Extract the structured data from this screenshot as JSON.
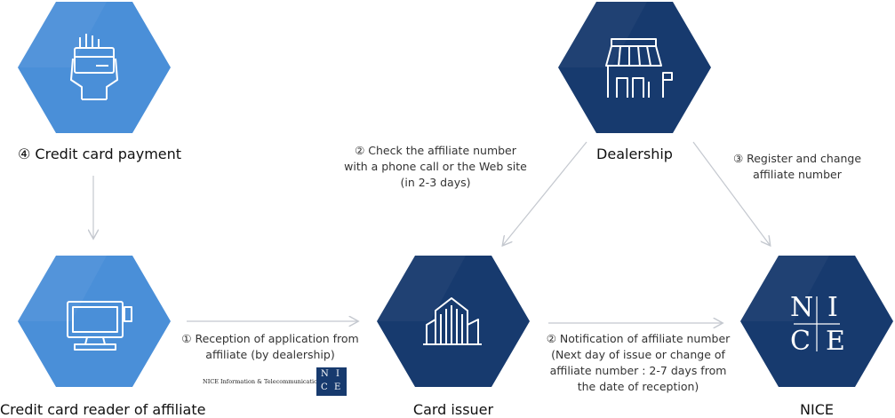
{
  "nodes": {
    "credit_card_payment": "④ Credit card payment",
    "dealership": "Dealership",
    "card_reader": "Credit card reader of affiliate",
    "card_issuer": "Card issuer",
    "nice": "NICE"
  },
  "notes": {
    "check_line1": "② Check the affiliate number",
    "check_line2": "with a phone call or the Web site",
    "check_line3": "(in 2-3 days)",
    "register_line1": "③ Register and change",
    "register_line2": "affiliate number",
    "reception_line1": "① Reception of application from",
    "reception_line2": "affiliate (by dealership)",
    "notification_line1": "② Notification of affiliate number",
    "notification_line2": "(Next day of issue or change of",
    "notification_line3": "affiliate number : 2-7 days from",
    "notification_line4": "the date of reception)"
  },
  "brand": {
    "text": "NICE Information & Telecommunication",
    "logo_letters": [
      "N",
      "I",
      "C",
      "E"
    ]
  },
  "nice_logo_letters": [
    "N",
    "I",
    "C",
    "E"
  ],
  "colors": {
    "light_blue": "#4a8fd8",
    "dark_blue": "#173a6e",
    "arrow_gray": "#c4c8cf"
  },
  "icons": {
    "credit_card_payment": "hand-holding-card-icon",
    "dealership": "storefront-icon",
    "card_reader": "pos-terminal-icon",
    "card_issuer": "buildings-icon",
    "nice": "nice-logo-icon"
  }
}
